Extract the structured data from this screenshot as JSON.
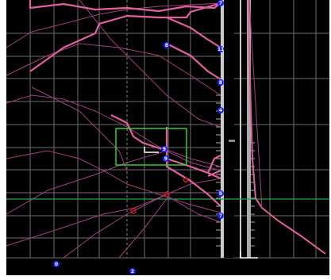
{
  "colors": {
    "background": "#000000",
    "grid": "#6e6e6e",
    "trace_pink": "#e060a0",
    "trace_thin": "#a04080",
    "horizon_green": "#1fa84a",
    "selection_green": "#33cc33",
    "badge_blue": "#1a22ff",
    "marker_red": "#cc1a1a",
    "cursor_white": "#ffffff"
  },
  "badges": {
    "b7": "7",
    "b8a": "8",
    "b11": "11",
    "b8b": "8",
    "b4": "4",
    "b9a": "9",
    "b9b": "9",
    "b9c": "9",
    "b7b": "7",
    "b0": "0",
    "b2": "2"
  },
  "icons": {
    "cursor": "corner-bracket-icon",
    "marker": "circle-marker-icon"
  }
}
